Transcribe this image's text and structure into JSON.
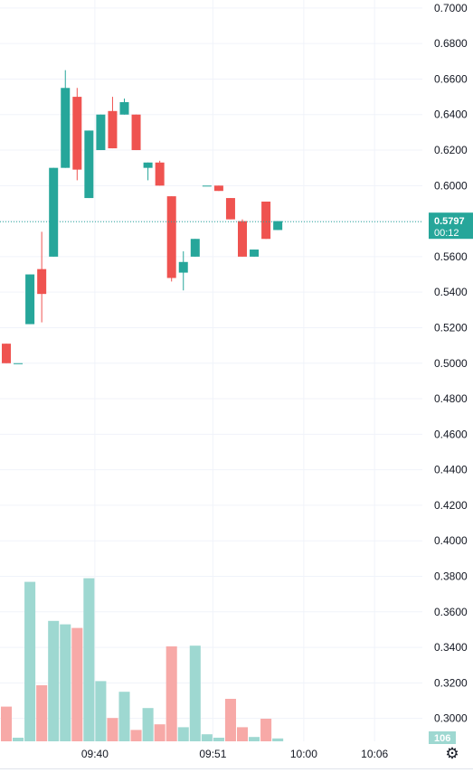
{
  "chart_data": {
    "type": "candlestick",
    "y_axis_ticks": [
      "0.7000",
      "0.6800",
      "0.6600",
      "0.6400",
      "0.6200",
      "0.6000",
      "0.5800",
      "0.5600",
      "0.5400",
      "0.5200",
      "0.5000",
      "0.4800",
      "0.4600",
      "0.4400",
      "0.4200",
      "0.4000",
      "0.3800",
      "0.3600",
      "0.3400",
      "0.3200",
      "0.3000"
    ],
    "ylim": [
      0.2922,
      0.704
    ],
    "x_axis_ticks": [
      {
        "label": "09:40",
        "index": 7.5
      },
      {
        "label": "09:51",
        "index": 17.5
      },
      {
        "label": "10:00",
        "index": 25.2
      },
      {
        "label": "10:06",
        "index": 31.2
      }
    ],
    "candles": [
      {
        "o": 0.511,
        "h": 0.511,
        "l": 0.5,
        "c": 0.5
      },
      {
        "o": 0.5,
        "h": 0.5,
        "l": 0.5,
        "c": 0.5
      },
      {
        "o": 0.522,
        "h": 0.55,
        "l": 0.522,
        "c": 0.55
      },
      {
        "o": 0.553,
        "h": 0.574,
        "l": 0.523,
        "c": 0.539
      },
      {
        "o": 0.56,
        "h": 0.61,
        "l": 0.56,
        "c": 0.61
      },
      {
        "o": 0.61,
        "h": 0.665,
        "l": 0.61,
        "c": 0.655
      },
      {
        "o": 0.65,
        "h": 0.655,
        "l": 0.603,
        "c": 0.609
      },
      {
        "o": 0.593,
        "h": 0.631,
        "l": 0.593,
        "c": 0.631
      },
      {
        "o": 0.62,
        "h": 0.64,
        "l": 0.62,
        "c": 0.64
      },
      {
        "o": 0.642,
        "h": 0.65,
        "l": 0.621,
        "c": 0.621
      },
      {
        "o": 0.64,
        "h": 0.649,
        "l": 0.64,
        "c": 0.647
      },
      {
        "o": 0.64,
        "h": 0.64,
        "l": 0.62,
        "c": 0.62
      },
      {
        "o": 0.61,
        "h": 0.613,
        "l": 0.603,
        "c": 0.613
      },
      {
        "o": 0.613,
        "h": 0.614,
        "l": 0.6,
        "c": 0.6
      },
      {
        "o": 0.594,
        "h": 0.594,
        "l": 0.546,
        "c": 0.548
      },
      {
        "o": 0.551,
        "h": 0.563,
        "l": 0.541,
        "c": 0.557
      },
      {
        "o": 0.56,
        "h": 0.57,
        "l": 0.56,
        "c": 0.57
      },
      {
        "o": 0.6,
        "h": 0.6,
        "l": 0.6,
        "c": 0.6
      },
      {
        "o": 0.6,
        "h": 0.6,
        "l": 0.597,
        "c": 0.597
      },
      {
        "o": 0.593,
        "h": 0.593,
        "l": 0.581,
        "c": 0.581
      },
      {
        "o": 0.58,
        "h": 0.581,
        "l": 0.56,
        "c": 0.56
      },
      {
        "o": 0.56,
        "h": 0.564,
        "l": 0.56,
        "c": 0.564
      },
      {
        "o": 0.591,
        "h": 0.591,
        "l": 0.57,
        "c": 0.57
      },
      {
        "o": 0.575,
        "h": 0.58,
        "l": 0.575,
        "c": 0.58
      }
    ],
    "volume": [
      {
        "v": 0.0192,
        "d": "down"
      },
      {
        "v": 0.002,
        "d": "up"
      },
      {
        "v": 0.0882,
        "d": "up"
      },
      {
        "v": 0.031,
        "d": "down"
      },
      {
        "v": 0.0666,
        "d": "up"
      },
      {
        "v": 0.0647,
        "d": "up"
      },
      {
        "v": 0.0627,
        "d": "down"
      },
      {
        "v": 0.0902,
        "d": "up"
      },
      {
        "v": 0.0333,
        "d": "up"
      },
      {
        "v": 0.0129,
        "d": "down"
      },
      {
        "v": 0.0274,
        "d": "up"
      },
      {
        "v": 0.0063,
        "d": "down"
      },
      {
        "v": 0.0184,
        "d": "up"
      },
      {
        "v": 0.0094,
        "d": "down"
      },
      {
        "v": 0.0525,
        "d": "down"
      },
      {
        "v": 0.0078,
        "d": "up"
      },
      {
        "v": 0.0529,
        "d": "up"
      },
      {
        "v": 0.0039,
        "d": "up"
      },
      {
        "v": 0.002,
        "d": "up"
      },
      {
        "v": 0.0235,
        "d": "down"
      },
      {
        "v": 0.0078,
        "d": "down"
      },
      {
        "v": 0.0024,
        "d": "up"
      },
      {
        "v": 0.0125,
        "d": "down"
      },
      {
        "v": 0.0016,
        "d": "up"
      }
    ],
    "current_price": 0.5797,
    "price_badge": {
      "price": "0.5797",
      "countdown": "00:12"
    },
    "volume_badge": "106",
    "grid": true
  },
  "colors": {
    "up": "#26a69a",
    "down": "#ef5350",
    "up_volume": "#9ed8d1",
    "down_volume": "#f7a9a7",
    "grid": "#f0f3fa",
    "price_line": "#26a69a"
  },
  "settings_icon": "gear-icon"
}
